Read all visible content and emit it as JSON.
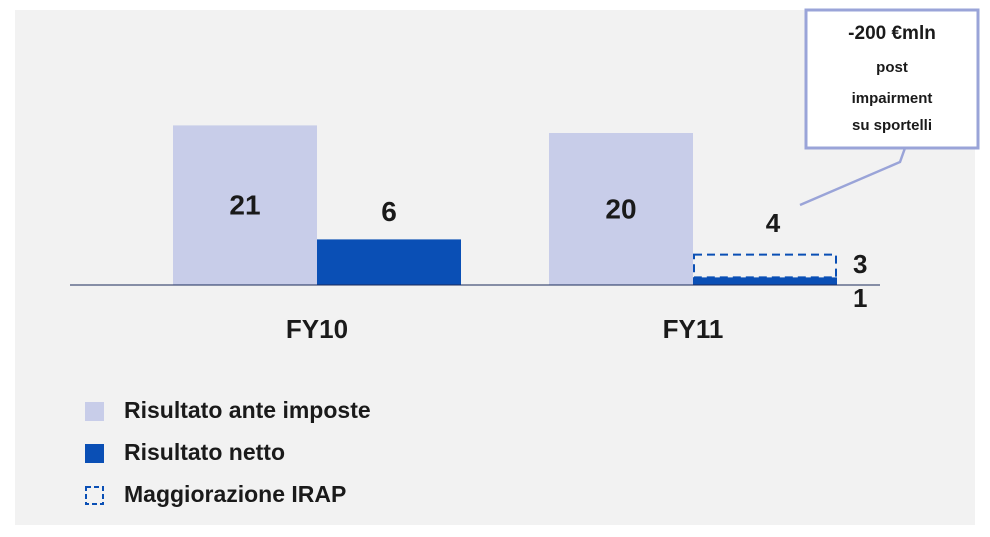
{
  "chart_data": {
    "type": "bar",
    "categories": [
      "FY10",
      "FY11"
    ],
    "series": [
      {
        "name": "Risultato ante imposte",
        "color": "#c8cde9",
        "values": [
          21,
          20
        ]
      },
      {
        "name": "Risultato netto",
        "color": "#0a4fb5",
        "values": [
          6,
          1
        ]
      },
      {
        "name": "Maggiorazione IRAP",
        "color": "#0a4fb5",
        "values": [
          null,
          3
        ],
        "stacked_on": "Risultato netto",
        "style": "dashed"
      }
    ],
    "total_labels": [
      null,
      "4"
    ],
    "ylim": [
      0,
      30
    ],
    "annotation": [
      "-200 €mln",
      "post",
      "impairment",
      "su sportelli"
    ]
  }
}
